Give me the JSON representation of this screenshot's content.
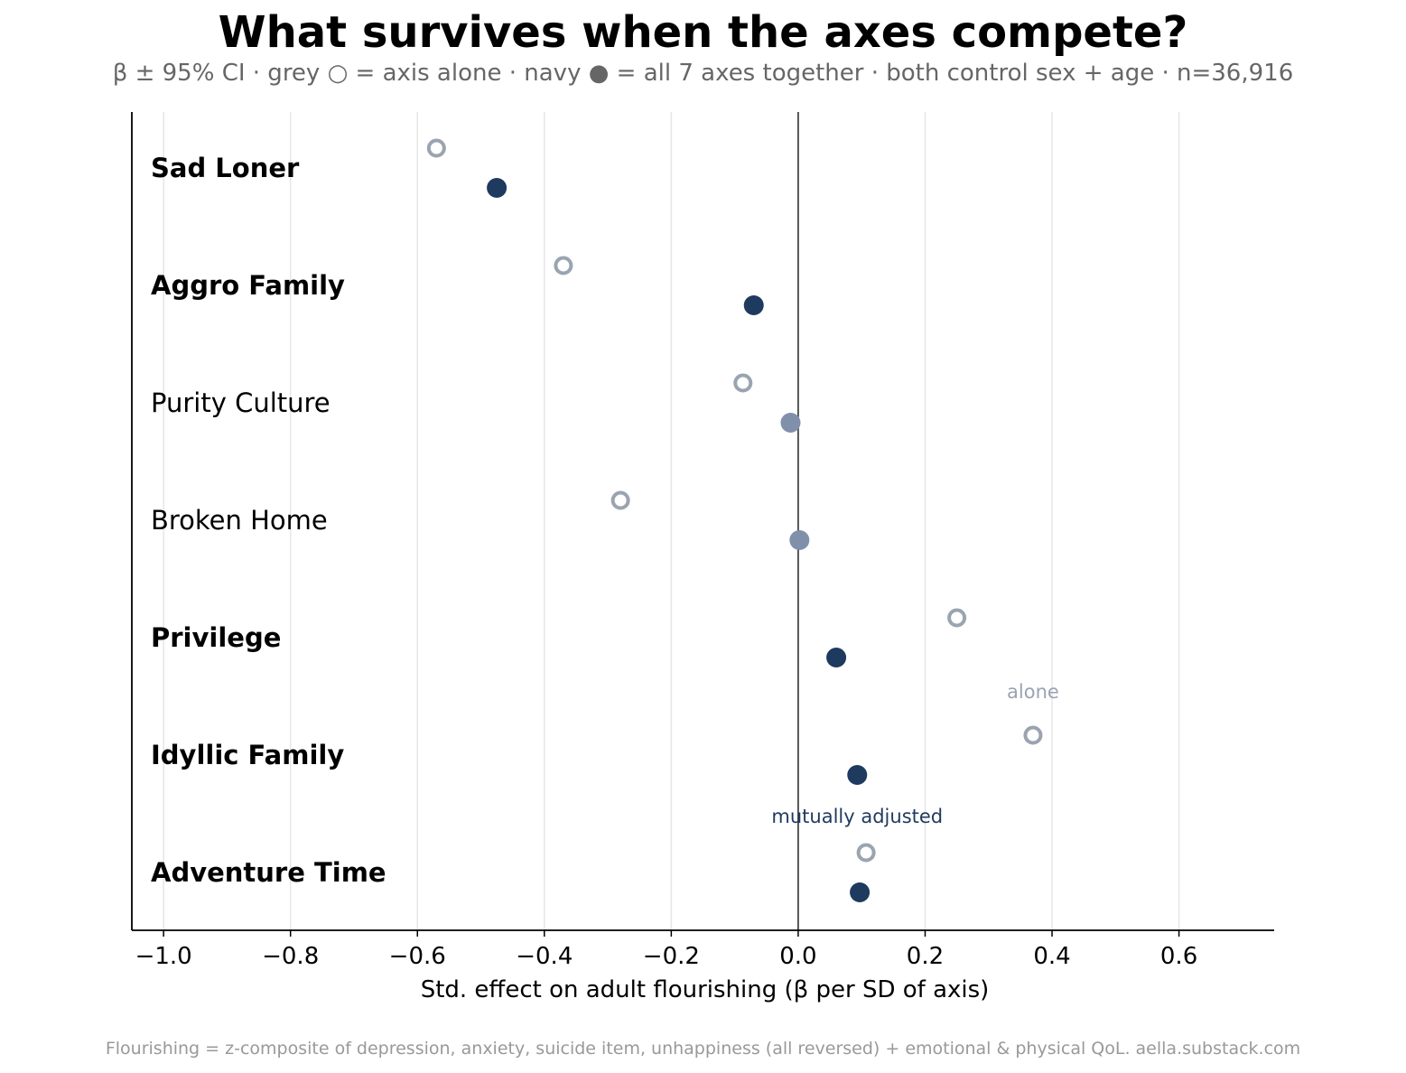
{
  "title": "What survives when the axes compete?",
  "subtitle": "β ± 95% CI · grey ○ = axis alone · navy ● = all 7 axes together · both control sex + age · n=36,916",
  "footer": "Flourishing = z-composite of depression, anxiety, suicide item, unhappiness (all reversed) + emotional & physical QoL. aella.substack.com",
  "colors": {
    "alone": "#9aa4b1",
    "adjusted_significant": "#1f3a5f",
    "adjusted_nonsignificant": "#8190aa",
    "axis": "#000000",
    "zero_line": "#333333",
    "grid": "#e6e6e6"
  },
  "chart_data": {
    "type": "scatter",
    "title": "What survives when the axes compete?",
    "xlabel": "Std. effect on adult flourishing (β per SD of axis)",
    "xlim": [
      -1.05,
      0.75
    ],
    "xticks": [
      -1.0,
      -0.8,
      -0.6,
      -0.4,
      -0.2,
      0.0,
      0.2,
      0.4,
      0.6
    ],
    "xtick_labels": [
      "−1.0",
      "−0.8",
      "−0.6",
      "−0.4",
      "−0.2",
      "0.0",
      "0.2",
      "0.4",
      "0.6"
    ],
    "grid": "vertical",
    "categories": [
      "Sad Loner",
      "Aggro Family",
      "Purity Culture",
      "Broken Home",
      "Privilege",
      "Idyllic Family",
      "Adventure Time"
    ],
    "bold": [
      true,
      true,
      false,
      false,
      true,
      true,
      true
    ],
    "series": [
      {
        "name": "axis alone",
        "marker": "open-circle",
        "values": [
          -0.57,
          -0.37,
          -0.087,
          -0.28,
          0.25,
          0.37,
          0.107
        ]
      },
      {
        "name": "all 7 axes together",
        "marker": "filled-circle",
        "values": [
          -0.475,
          -0.07,
          -0.012,
          0.002,
          0.06,
          0.093,
          0.097
        ],
        "significant": [
          true,
          true,
          false,
          false,
          true,
          true,
          true
        ]
      }
    ],
    "annotations": [
      {
        "text": "alone",
        "x": 0.37,
        "category": "Idyllic Family",
        "series": "axis alone"
      },
      {
        "text": "mutually adjusted",
        "x": 0.093,
        "category": "Adventure Time",
        "series": "all 7 axes together"
      }
    ]
  }
}
